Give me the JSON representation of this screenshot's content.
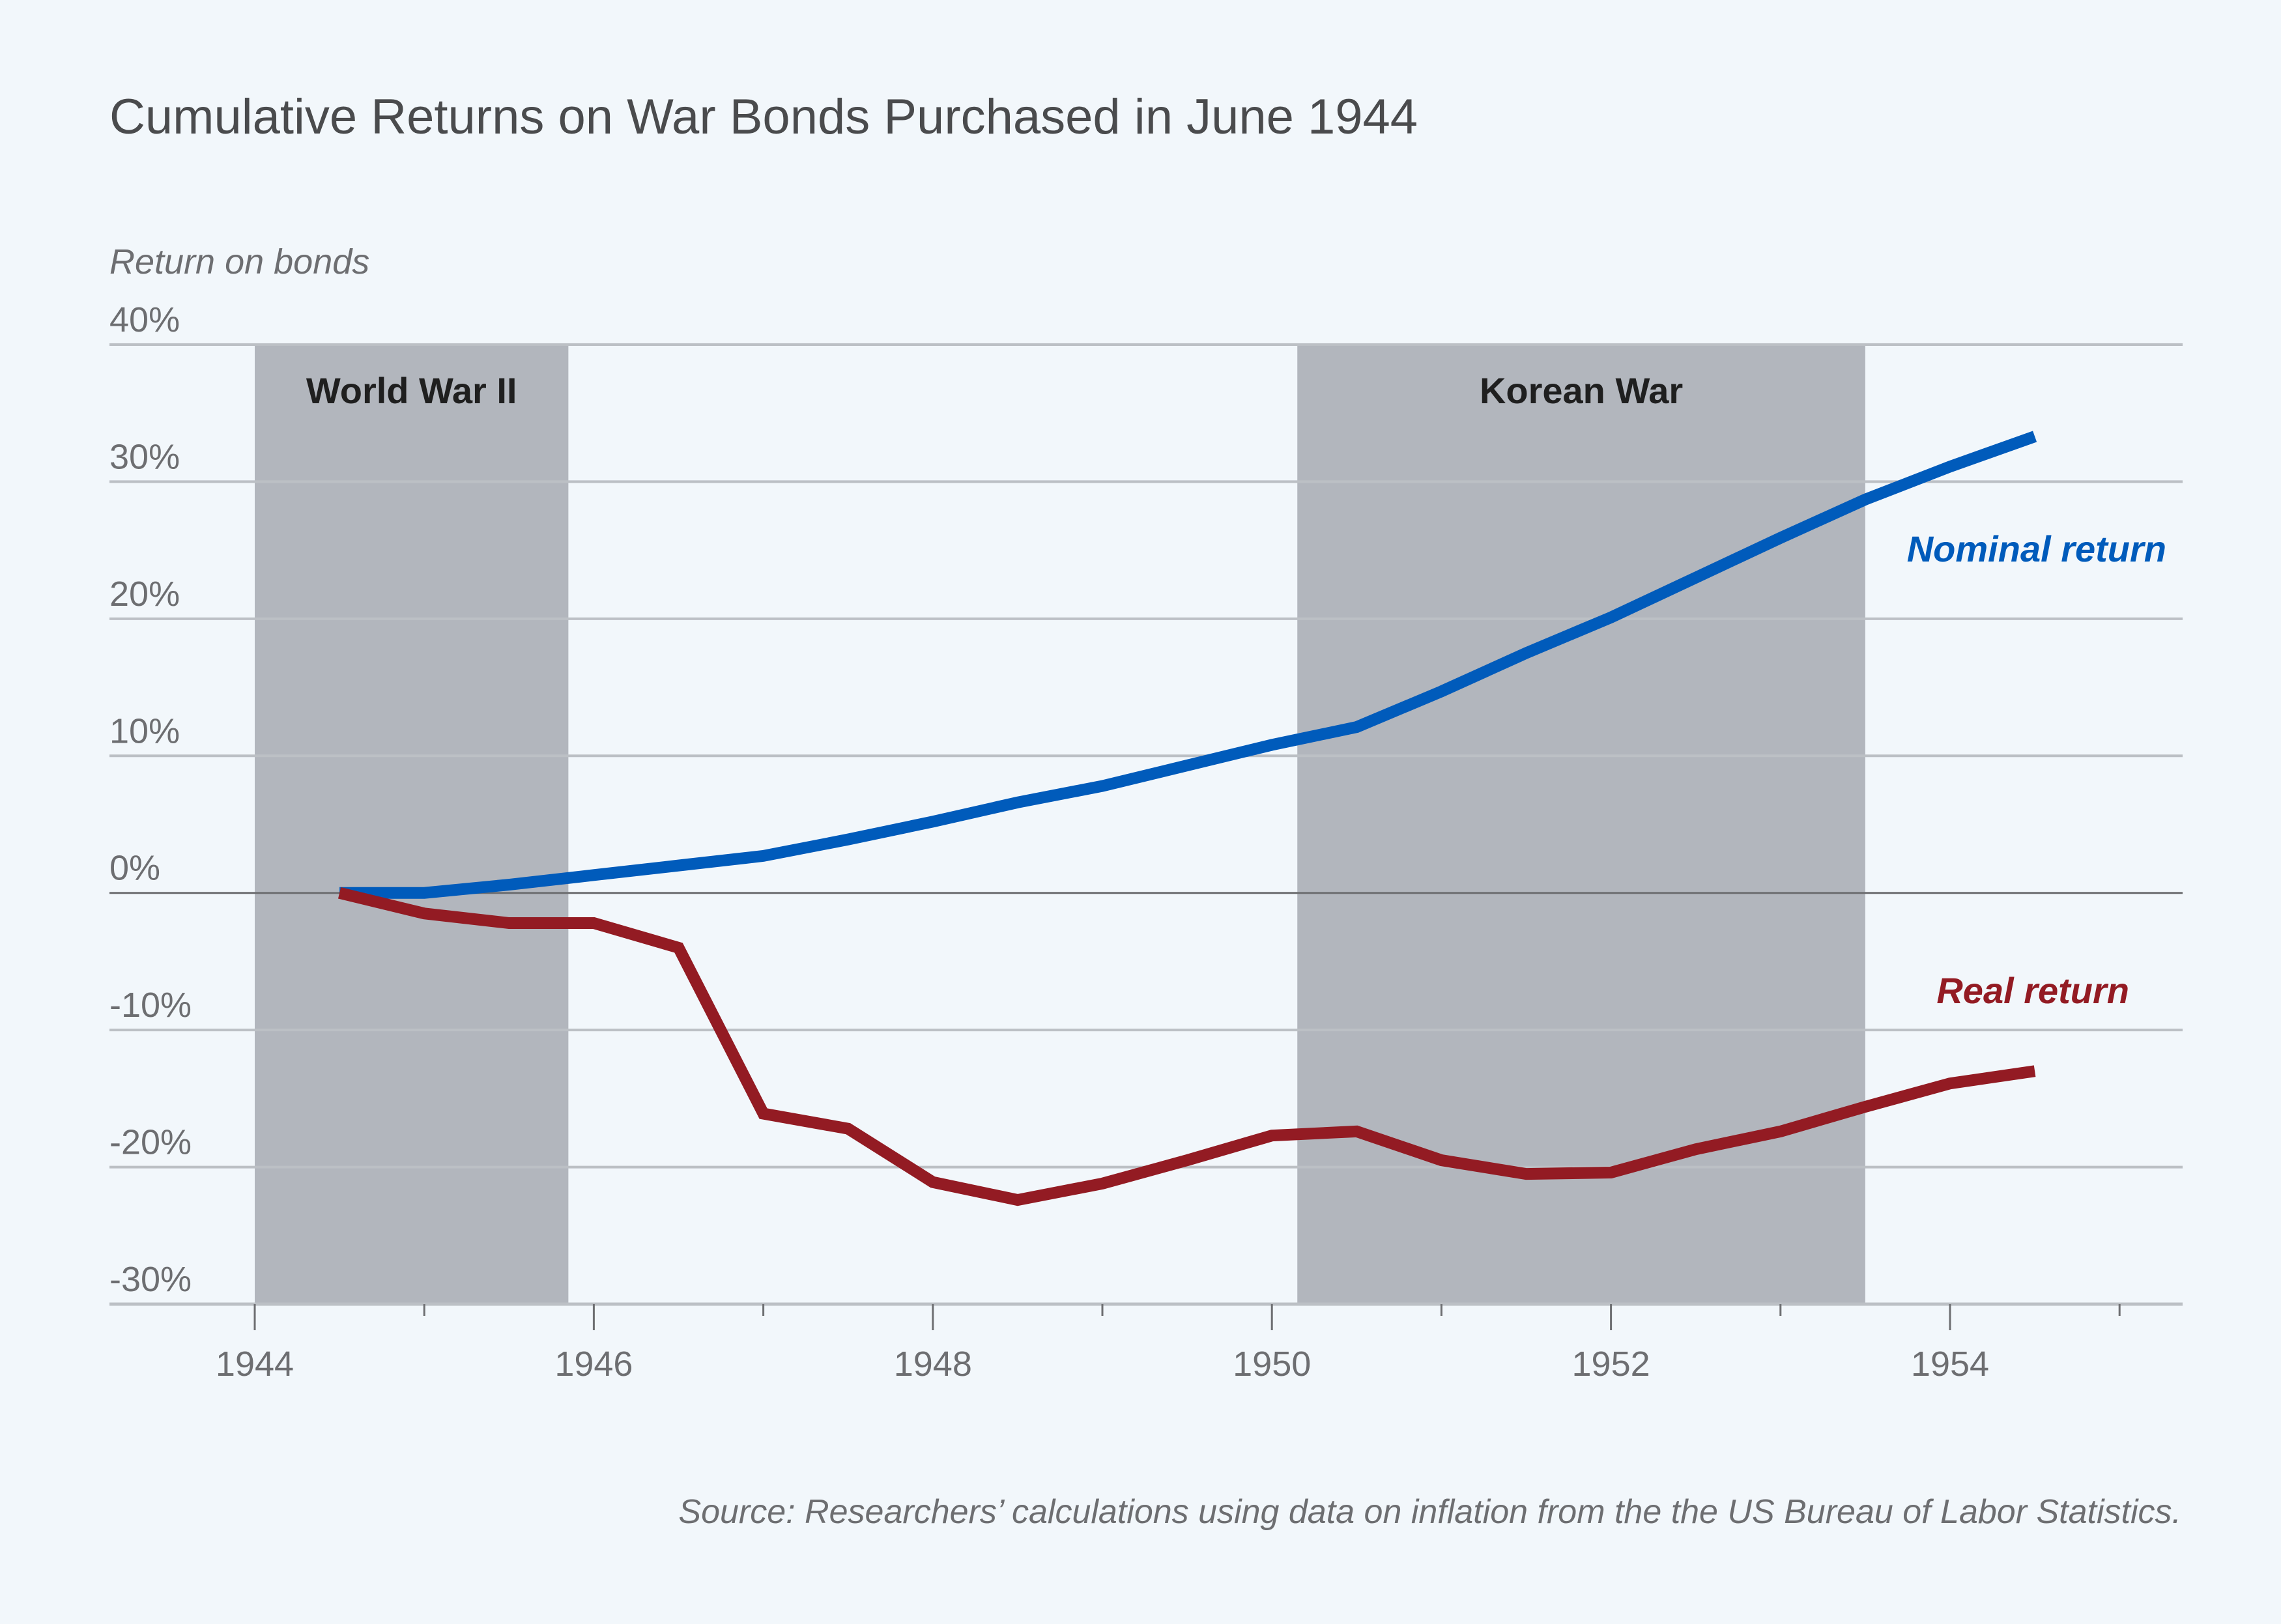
{
  "chart_data": {
    "type": "line",
    "title": "Cumulative Returns on War Bonds Purchased in June 1944",
    "ylabel": "Return on bonds",
    "xlabel": "",
    "xlim": [
      1943.57,
      1955.67
    ],
    "ylim": [
      -30,
      40
    ],
    "x_ticks": [
      1944,
      1946,
      1948,
      1950,
      1952,
      1954
    ],
    "x_minor_ticks": [
      1945,
      1947,
      1949,
      1951,
      1953,
      1955
    ],
    "y_ticks": [
      {
        "value": 40,
        "label": "40%"
      },
      {
        "value": 30,
        "label": "30%"
      },
      {
        "value": 20,
        "label": "20%"
      },
      {
        "value": 10,
        "label": "10%"
      },
      {
        "value": 0,
        "label": "0%"
      },
      {
        "value": -10,
        "label": "-10%"
      },
      {
        "value": -20,
        "label": "-20%"
      },
      {
        "value": -30,
        "label": "-30%"
      }
    ],
    "grid": true,
    "shaded_periods": [
      {
        "label": "World War II",
        "start": 1944.0,
        "end": 1945.85
      },
      {
        "label": "Korean War",
        "start": 1950.15,
        "end": 1953.5
      }
    ],
    "x": [
      1944.5,
      1945.0,
      1945.5,
      1946.0,
      1946.5,
      1947.0,
      1947.5,
      1948.0,
      1948.5,
      1949.0,
      1949.5,
      1950.0,
      1950.5,
      1951.0,
      1951.5,
      1952.0,
      1952.5,
      1953.0,
      1953.5,
      1954.0,
      1954.5
    ],
    "series": [
      {
        "name": "Nominal return",
        "color": "#005bbb",
        "values": [
          0,
          0,
          0.6,
          1.3,
          2.0,
          2.7,
          3.9,
          5.2,
          6.6,
          7.8,
          9.3,
          10.8,
          12.1,
          14.7,
          17.5,
          20.1,
          23.0,
          25.9,
          28.7,
          31.1,
          33.3
        ]
      },
      {
        "name": "Real return",
        "color": "#931b23",
        "values": [
          0,
          -1.5,
          -2.2,
          -2.2,
          -4.0,
          -16.1,
          -17.2,
          -21.1,
          -22.4,
          -21.2,
          -19.5,
          -17.7,
          -17.4,
          -19.5,
          -20.5,
          -20.4,
          -18.7,
          -17.4,
          -15.6,
          -13.9,
          -13.0
        ]
      }
    ],
    "legend": "inline-right",
    "source": "Source: Researchers’ calculations using data on inflation from the the US Bureau of Labor Statistics."
  }
}
